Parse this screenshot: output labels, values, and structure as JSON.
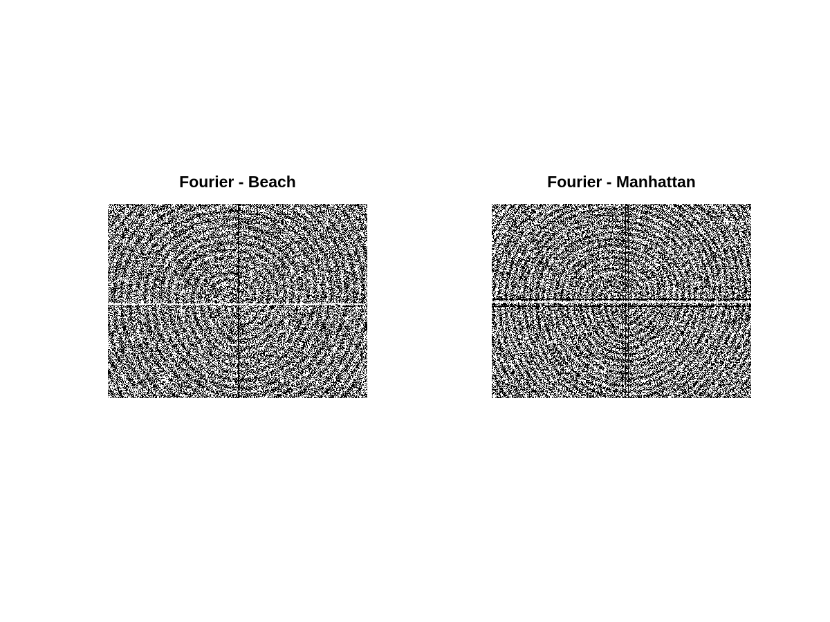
{
  "figure": {
    "background_color": "#ffffff",
    "panels": [
      {
        "title": "Fourier - Beach",
        "image_description": "binary black-and-white Fourier phase pattern",
        "colors": {
          "dark": "#000000",
          "light": "#ffffff"
        },
        "axis_lines": "vertical line slightly left of center, horizontal line near middle"
      },
      {
        "title": "Fourier - Manhattan",
        "image_description": "binary black-and-white Fourier phase pattern",
        "colors": {
          "dark": "#000000",
          "light": "#ffffff"
        },
        "axis_lines": "vertical band near center, strong horizontal line near middle"
      }
    ]
  }
}
